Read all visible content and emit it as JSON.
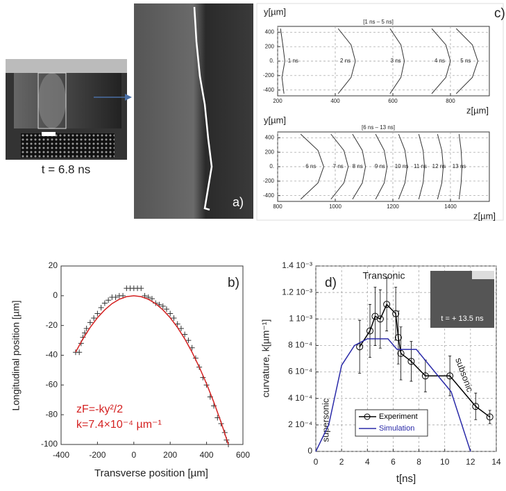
{
  "images": [
    {
      "caption": "t = 6.8 ns"
    },
    {
      "label": "a)"
    }
  ],
  "chart_data": [
    {
      "type": "line",
      "panel": "c)",
      "title": "[1 ns – 5 ns]",
      "xlabel": "z[µm]",
      "ylabel": "y[µm]",
      "xlim": [
        200,
        935
      ],
      "xticks": [
        200,
        400,
        600,
        800
      ],
      "ylim": [
        -480,
        480
      ],
      "yticks": [
        -400,
        -200,
        {
          "value": 0,
          "label": "0."
        },
        200,
        400
      ],
      "grid": true,
      "color": "#333333",
      "series": [
        {
          "name": "1 ns",
          "x": [
            222,
            215,
            225,
            218,
            210
          ],
          "values": [
            -450,
            -225,
            0,
            225,
            450
          ]
        },
        {
          "name": "2 ns",
          "x": [
            410,
            455,
            470,
            455,
            410
          ],
          "values": [
            -450,
            -225,
            0,
            225,
            450
          ]
        },
        {
          "name": "3 ns",
          "x": [
            590,
            628,
            640,
            628,
            590
          ],
          "values": [
            -450,
            -225,
            0,
            225,
            450
          ]
        },
        {
          "name": "4 ns",
          "x": [
            735,
            784,
            800,
            784,
            735
          ],
          "values": [
            -450,
            -225,
            0,
            225,
            450
          ]
        },
        {
          "name": "5 ns",
          "x": [
            820,
            876,
            895,
            876,
            820
          ],
          "values": [
            -450,
            -225,
            0,
            225,
            450
          ]
        }
      ]
    },
    {
      "type": "line",
      "title": "[6 ns – 13 ns]",
      "xlabel": "z[µm]",
      "ylabel": "y[µm]",
      "xlim": [
        800,
        1535
      ],
      "xticks": [
        800,
        1000,
        1200,
        1400
      ],
      "ylim": [
        -480,
        480
      ],
      "yticks": [
        -400,
        -200,
        {
          "value": 0,
          "label": "0."
        },
        200,
        400
      ],
      "grid": true,
      "color": "#333333",
      "series": [
        {
          "name": "6 ns",
          "x": [
            880,
            940,
            960,
            940,
            880
          ],
          "values": [
            -450,
            -225,
            0,
            225,
            450
          ]
        },
        {
          "name": "7 ns",
          "x": [
            985,
            1030,
            1045,
            1030,
            985
          ],
          "values": [
            -450,
            -225,
            0,
            225,
            450
          ]
        },
        {
          "name": "8 ns",
          "x": [
            1060,
            1094,
            1105,
            1094,
            1060
          ],
          "values": [
            -450,
            -225,
            0,
            225,
            450
          ]
        },
        {
          "name": "9 ns",
          "x": [
            1140,
            1170,
            1180,
            1170,
            1140
          ],
          "values": [
            -450,
            -225,
            0,
            225,
            450
          ]
        },
        {
          "name": "10 ns",
          "x": [
            1220,
            1242,
            1250,
            1242,
            1220
          ],
          "values": [
            -450,
            -225,
            0,
            225,
            450
          ]
        },
        {
          "name": "11 ns",
          "x": [
            1290,
            1305,
            1310,
            1305,
            1290
          ],
          "values": [
            -450,
            -225,
            0,
            225,
            450
          ]
        },
        {
          "name": "12 ns",
          "x": [
            1355,
            1370,
            1375,
            1370,
            1355
          ],
          "values": [
            -450,
            -225,
            0,
            225,
            450
          ]
        },
        {
          "name": "13 ns",
          "x": [
            1430,
            1437,
            1440,
            1437,
            1430
          ],
          "values": [
            -450,
            -225,
            0,
            225,
            450
          ]
        }
      ]
    },
    {
      "type": "scatter",
      "panel": "b)",
      "xlabel": "Transverse position [µm]",
      "ylabel": "Longitudinal position [µm]",
      "xlim": [
        -400,
        600
      ],
      "xticks": [
        -400,
        -200,
        0,
        200,
        400,
        600
      ],
      "ylim": [
        -100,
        20
      ],
      "yticks": [
        -100,
        -80,
        -60,
        -40,
        -20,
        0,
        20
      ],
      "color": "#333333",
      "annotations": [
        "zF=-ky²/2",
        "k=7.4×10⁻⁴ µm⁻¹"
      ],
      "x": [
        -320,
        -300,
        -290,
        -280,
        -270,
        -260,
        -240,
        -220,
        -200,
        -180,
        -160,
        -140,
        -120,
        -100,
        -80,
        -60,
        -40,
        -20,
        0,
        20,
        40,
        60,
        80,
        100,
        120,
        140,
        160,
        180,
        200,
        220,
        240,
        260,
        280,
        300,
        320,
        340,
        360,
        380,
        400,
        420,
        440,
        460,
        480,
        500,
        510,
        520
      ],
      "values": [
        -38,
        -38,
        -32,
        -28,
        -25,
        -22,
        -18,
        -15,
        -12,
        -8,
        -5,
        -3,
        -1,
        -1,
        0,
        0,
        5,
        5,
        5,
        5,
        5,
        0,
        -1,
        -2,
        -5,
        -6,
        -7,
        -9,
        -12,
        -15,
        -19,
        -22,
        -26,
        -30,
        -35,
        -42,
        -48,
        -55,
        -60,
        -68,
        -74,
        -82,
        -86,
        -92,
        -97,
        -100
      ],
      "fit": {
        "color": "#d42020",
        "x": [
          -320,
          -280,
          -240,
          -200,
          -160,
          -120,
          -80,
          -40,
          0,
          40,
          80,
          120,
          160,
          200,
          240,
          280,
          320,
          360,
          400,
          440,
          480,
          520
        ],
        "values": [
          -37.9,
          -29.0,
          -21.3,
          -14.8,
          -9.5,
          -5.3,
          -2.4,
          -0.6,
          0,
          -0.6,
          -2.4,
          -5.3,
          -9.5,
          -14.8,
          -21.3,
          -29.0,
          -37.9,
          -48.0,
          -59.2,
          -71.6,
          -85.2,
          -100.0
        ]
      }
    },
    {
      "type": "line",
      "panel": "d)",
      "xlabel": "t[ns]",
      "ylabel": "curvature, k[µm⁻¹]",
      "xlim": [
        0,
        14
      ],
      "xticks": [
        0,
        2,
        4,
        6,
        8,
        10,
        12,
        14
      ],
      "ylim": [
        0,
        0.0014
      ],
      "yticks": [
        0,
        {
          "value": 0.0002,
          "label": "2 10⁻⁴"
        },
        {
          "value": 0.0004,
          "label": "4 10⁻⁴"
        },
        {
          "value": 0.0006,
          "label": "6 10⁻⁴"
        },
        {
          "value": 0.0008,
          "label": "8 10⁻⁴"
        },
        {
          "value": 0.001,
          "label": "1 10⁻³"
        },
        {
          "value": 0.0012,
          "label": "1.2 10⁻³"
        },
        {
          "value": 0.0014,
          "label": "1.4 10⁻³"
        }
      ],
      "grid": true,
      "legend": "lower center",
      "annotations": [
        "Transonic",
        "supersonic",
        "subsonic",
        "t = + 13.5 ns"
      ],
      "series": [
        {
          "name": "Experiment",
          "color": "#000000",
          "marker": "circle",
          "x": [
            3.4,
            4.2,
            4.6,
            5.0,
            5.5,
            6.2,
            6.4,
            6.6,
            7.4,
            8.5,
            10.4,
            12.4,
            13.5
          ],
          "values": [
            0.00079,
            0.00091,
            0.00102,
            0.001,
            0.00111,
            0.00104,
            0.00086,
            0.00074,
            0.00068,
            0.00057,
            0.00057,
            0.00034,
            0.00026
          ],
          "errors": [
            0.0002,
            0.0002,
            0.00022,
            0.00022,
            0.0002,
            0.0002,
            0.0002,
            0.0002,
            0.00015,
            0.00012,
            0.00015,
            0.0001,
            5e-05
          ]
        },
        {
          "name": "Simulation",
          "color": "#2a2aa8",
          "x": [
            0,
            1,
            2,
            3,
            4,
            5.6,
            6.3,
            7.8,
            10.5,
            12
          ],
          "values": [
            0,
            0.0002,
            0.00065,
            0.0008,
            0.00085,
            0.00085,
            0.00077,
            0.00077,
            0.00045,
            0
          ]
        }
      ]
    }
  ]
}
